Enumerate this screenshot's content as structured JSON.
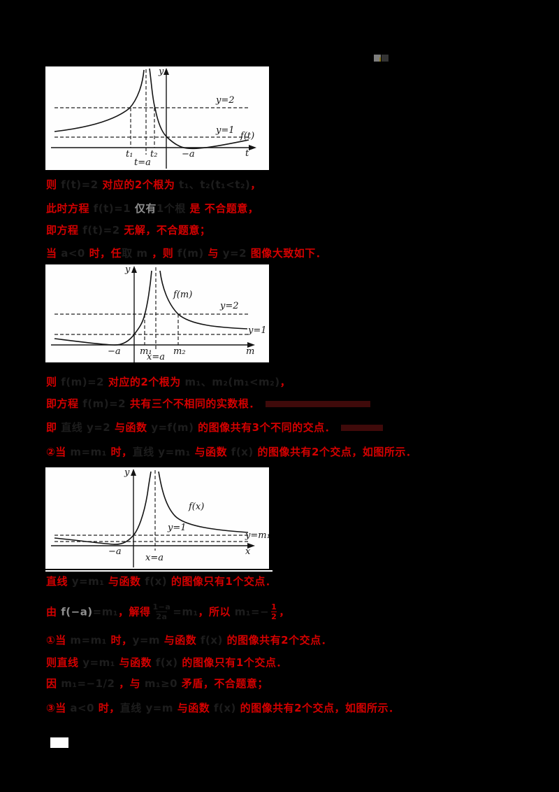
{
  "panels": [
    {
      "labels": {
        "y_axis": "y",
        "x_axis": "t",
        "line2": "y=2",
        "line1": "y=1",
        "func": "f(t)",
        "root1": "t₁",
        "root2": "t₂",
        "asym": "t=a",
        "nega": "−a"
      }
    },
    {
      "labels": {
        "y_axis": "y",
        "x_axis": "m",
        "line2": "y=2",
        "line1": "y=1",
        "func": "f(m)",
        "root1": "m₁",
        "root2": "m₂",
        "asym": "x=a",
        "nega": "−a"
      }
    },
    {
      "labels": {
        "y_axis": "y",
        "x_axis": "x",
        "line1": "y=1",
        "linem": "y=m₁",
        "func": "f(x)",
        "asym": "x=a",
        "nega": "−a"
      }
    }
  ],
  "text_blocks": [
    {
      "lines": [
        {
          "segments": [
            {
              "t": "则",
              "c": "red"
            },
            {
              "t": " f(t)=2 ",
              "c": "dark"
            },
            {
              "t": "对应的2个根为",
              "c": "red"
            },
            {
              "t": " t₁、t₂(t₁<t₂)",
              "c": "dark"
            },
            {
              "t": "，",
              "c": "red"
            }
          ]
        },
        {
          "segments": [
            {
              "t": "此时方程",
              "c": "red"
            },
            {
              "t": " f(t)=1 ",
              "c": "dark"
            },
            {
              "t": "仅有",
              "c": "gray"
            },
            {
              "t": "1个根",
              "c": "dark"
            },
            {
              "t": " 是 ",
              "c": "red"
            },
            {
              "t": "不合题意，",
              "c": "red"
            }
          ]
        },
        {
          "segments": [
            {
              "t": "即方程",
              "c": "red"
            },
            {
              "t": " f(t)=2 ",
              "c": "dark"
            },
            {
              "t": "无解，不合题意；",
              "c": "red"
            }
          ]
        },
        {
          "segments": [
            {
              "t": "当",
              "c": "red"
            },
            {
              "t": " a<0 ",
              "c": "dark"
            },
            {
              "t": "时，任",
              "c": "red"
            },
            {
              "t": "取 m ",
              "c": "dark"
            },
            {
              "t": "，则",
              "c": "red"
            },
            {
              "t": " f(m) ",
              "c": "dark"
            },
            {
              "t": "与",
              "c": "red"
            },
            {
              "t": " y=2 ",
              "c": "dark"
            },
            {
              "t": "图像大致如下．",
              "c": "red"
            }
          ]
        }
      ]
    },
    {
      "lines": [
        {
          "segments": [
            {
              "t": "则",
              "c": "red"
            },
            {
              "t": " f(m)=2 ",
              "c": "dark"
            },
            {
              "t": "对应的2个根为",
              "c": "red"
            },
            {
              "t": " m₁、m₂(m₁<m₂)",
              "c": "dark"
            },
            {
              "t": "，",
              "c": "red"
            }
          ]
        },
        {
          "segments": [
            {
              "t": "即方程",
              "c": "red"
            },
            {
              "t": " f(m)=2 ",
              "c": "dark"
            },
            {
              "t": "共有三个不相同的实数根．",
              "c": "red"
            },
            {
              "type": "bar",
              "w": 150
            }
          ]
        },
        {
          "segments": [
            {
              "t": "即",
              "c": "red"
            },
            {
              "t": " 直线 y=2 ",
              "c": "dark"
            },
            {
              "t": "与函数",
              "c": "red"
            },
            {
              "t": " y=f(m) ",
              "c": "dark"
            },
            {
              "t": "的图像共有3个不同的交点．",
              "c": "red"
            },
            {
              "type": "bar",
              "w": 60
            }
          ]
        },
        {
          "segments": [
            {
              "t": "②当",
              "c": "red"
            },
            {
              "t": " m=m₁ ",
              "c": "dark"
            },
            {
              "t": "时，",
              "c": "red"
            },
            {
              "t": "直线 y=m₁ ",
              "c": "dark"
            },
            {
              "t": "与函数",
              "c": "red"
            },
            {
              "t": " f(x) ",
              "c": "dark"
            },
            {
              "t": "的图像共有2个交点，如图所示．",
              "c": "red"
            }
          ]
        }
      ]
    },
    {
      "lines": [
        {
          "segments": [
            {
              "t": "直线",
              "c": "red"
            },
            {
              "t": " y=m₁ ",
              "c": "dark"
            },
            {
              "t": "与函数",
              "c": "red"
            },
            {
              "t": " f(x) ",
              "c": "dark"
            },
            {
              "t": "的图像只有1个交点．",
              "c": "red"
            }
          ]
        },
        {
          "segments": [
            {
              "t": "由",
              "c": "red"
            },
            {
              "t": " f(−a)",
              "c": "gray"
            },
            {
              "t": "=m₁",
              "c": "dark"
            },
            {
              "t": "，解得",
              "c": "red"
            },
            {
              "type": "frac",
              "c": "dark",
              "num": "1−a",
              "den": "2a"
            },
            {
              "t": "=m₁",
              "c": "dark"
            },
            {
              "t": "，所以",
              "c": "red"
            },
            {
              "t": " m₁=−",
              "c": "dark"
            },
            {
              "type": "frac",
              "c": "red",
              "num": "1",
              "den": "2"
            },
            {
              "t": "，",
              "c": "red"
            }
          ]
        },
        {
          "segments": [
            {
              "t": "①当",
              "c": "red"
            },
            {
              "t": " m=m₁ ",
              "c": "dark"
            },
            {
              "t": "时，",
              "c": "red"
            },
            {
              "t": "y=m ",
              "c": "dark"
            },
            {
              "t": "与函数",
              "c": "red"
            },
            {
              "t": " f(x) ",
              "c": "dark"
            },
            {
              "t": "的图像共有2个交点．",
              "c": "red"
            }
          ]
        },
        {
          "segments": [
            {
              "t": "则直线",
              "c": "red"
            },
            {
              "t": " y=m₁ ",
              "c": "dark"
            },
            {
              "t": "与函数",
              "c": "red"
            },
            {
              "t": " f(x) ",
              "c": "dark"
            },
            {
              "t": "的图像只有1个交点．",
              "c": "red"
            }
          ]
        },
        {
          "segments": [
            {
              "t": "因",
              "c": "red"
            },
            {
              "t": " m₁=−1/2 ",
              "c": "dark"
            },
            {
              "t": "，与",
              "c": "red"
            },
            {
              "t": " m₁≥0 ",
              "c": "dark"
            },
            {
              "t": "矛盾，不合题意；",
              "c": "red"
            }
          ]
        },
        {
          "segments": [
            {
              "t": "③当",
              "c": "red"
            },
            {
              "t": " a<0 ",
              "c": "dark"
            },
            {
              "t": "时，",
              "c": "red"
            },
            {
              "t": "直线 y=m ",
              "c": "dark"
            },
            {
              "t": "与函数",
              "c": "red"
            },
            {
              "t": " f(x) ",
              "c": "dark"
            },
            {
              "t": "的图像共有2个交点，如图所示．",
              "c": "red"
            }
          ]
        }
      ]
    }
  ]
}
